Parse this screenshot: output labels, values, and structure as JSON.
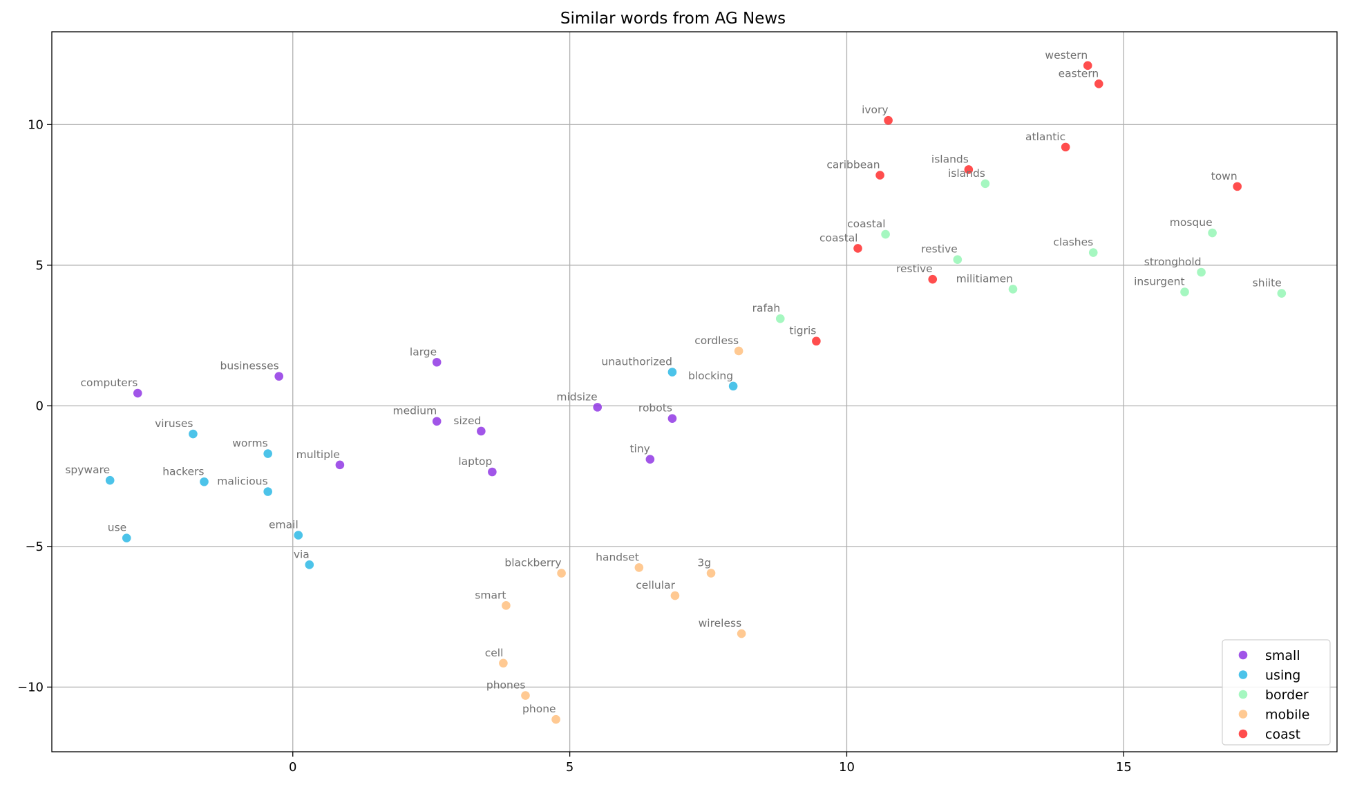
{
  "chart_data": {
    "type": "scatter",
    "title": "Similar words from AG News",
    "xlabel": "",
    "ylabel": "",
    "xlim": [
      -4.35,
      18.85
    ],
    "ylim": [
      -12.3,
      13.3
    ],
    "x_ticks": [
      0,
      5,
      10,
      15
    ],
    "x_tick_labels": [
      "0",
      "5",
      "10",
      "15"
    ],
    "y_ticks": [
      10,
      5,
      0,
      -5,
      -10
    ],
    "y_tick_labels": [
      "10",
      "5",
      "0",
      "−5",
      "−10"
    ],
    "grid": true,
    "legend_position": "lower-right",
    "series": [
      {
        "name": "small",
        "color": "#8a2be2",
        "points": [
          {
            "label": "computers",
            "x": -2.8,
            "y": 0.45
          },
          {
            "label": "businesses",
            "x": -0.25,
            "y": 1.05
          },
          {
            "label": "large",
            "x": 2.6,
            "y": 1.55
          },
          {
            "label": "medium",
            "x": 2.6,
            "y": -0.55
          },
          {
            "label": "sized",
            "x": 3.4,
            "y": -0.9
          },
          {
            "label": "multiple",
            "x": 0.85,
            "y": -2.1
          },
          {
            "label": "laptop",
            "x": 3.6,
            "y": -2.35
          },
          {
            "label": "midsize",
            "x": 5.5,
            "y": -0.05
          },
          {
            "label": "robots",
            "x": 6.85,
            "y": -0.45
          },
          {
            "label": "tiny",
            "x": 6.45,
            "y": -1.9
          }
        ]
      },
      {
        "name": "using",
        "color": "#1fb4e4",
        "points": [
          {
            "label": "viruses",
            "x": -1.8,
            "y": -1.0
          },
          {
            "label": "worms",
            "x": -0.45,
            "y": -1.7
          },
          {
            "label": "spyware",
            "x": -3.3,
            "y": -2.65
          },
          {
            "label": "hackers",
            "x": -1.6,
            "y": -2.7
          },
          {
            "label": "malicious",
            "x": -0.45,
            "y": -3.05
          },
          {
            "label": "use",
            "x": -3.0,
            "y": -4.7
          },
          {
            "label": "email",
            "x": 0.1,
            "y": -4.6
          },
          {
            "label": "via",
            "x": 0.3,
            "y": -5.65
          },
          {
            "label": "unauthorized",
            "x": 6.85,
            "y": 1.2
          },
          {
            "label": "blocking",
            "x": 7.95,
            "y": 0.7
          }
        ]
      },
      {
        "name": "border",
        "color": "#8ef5b0",
        "points": [
          {
            "label": "islands",
            "x": 12.5,
            "y": 7.9
          },
          {
            "label": "coastal",
            "x": 10.7,
            "y": 6.1
          },
          {
            "label": "restive",
            "x": 12.0,
            "y": 5.2
          },
          {
            "label": "clashes",
            "x": 14.45,
            "y": 5.45
          },
          {
            "label": "mosque",
            "x": 16.6,
            "y": 6.15
          },
          {
            "label": "stronghold",
            "x": 16.4,
            "y": 4.75
          },
          {
            "label": "insurgent",
            "x": 16.1,
            "y": 4.05
          },
          {
            "label": "shiite",
            "x": 17.85,
            "y": 4.0
          },
          {
            "label": "militiamen",
            "x": 13.0,
            "y": 4.15
          },
          {
            "label": "rafah",
            "x": 8.8,
            "y": 3.1
          }
        ]
      },
      {
        "name": "mobile",
        "color": "#ffbb77",
        "points": [
          {
            "label": "cordless",
            "x": 8.05,
            "y": 1.95
          },
          {
            "label": "blackberry",
            "x": 4.85,
            "y": -5.95
          },
          {
            "label": "handset",
            "x": 6.25,
            "y": -5.75
          },
          {
            "label": "3g",
            "x": 7.55,
            "y": -5.95
          },
          {
            "label": "smart",
            "x": 3.85,
            "y": -7.1
          },
          {
            "label": "cellular",
            "x": 6.9,
            "y": -6.75
          },
          {
            "label": "wireless",
            "x": 8.1,
            "y": -8.1
          },
          {
            "label": "cell",
            "x": 3.8,
            "y": -9.15
          },
          {
            "label": "phones",
            "x": 4.2,
            "y": -10.3
          },
          {
            "label": "phone",
            "x": 4.75,
            "y": -11.15
          }
        ]
      },
      {
        "name": "coast",
        "color": "#ff2020",
        "points": [
          {
            "label": "western",
            "x": 14.35,
            "y": 12.1
          },
          {
            "label": "eastern",
            "x": 14.55,
            "y": 11.45
          },
          {
            "label": "ivory",
            "x": 10.75,
            "y": 10.15
          },
          {
            "label": "atlantic",
            "x": 13.95,
            "y": 9.2
          },
          {
            "label": "caribbean",
            "x": 10.6,
            "y": 8.2
          },
          {
            "label": "islands",
            "x": 12.2,
            "y": 8.4
          },
          {
            "label": "town",
            "x": 17.05,
            "y": 7.8
          },
          {
            "label": "coastal",
            "x": 10.2,
            "y": 5.6
          },
          {
            "label": "restive",
            "x": 11.55,
            "y": 4.5
          },
          {
            "label": "tigris",
            "x": 9.45,
            "y": 2.3
          }
        ]
      }
    ]
  }
}
